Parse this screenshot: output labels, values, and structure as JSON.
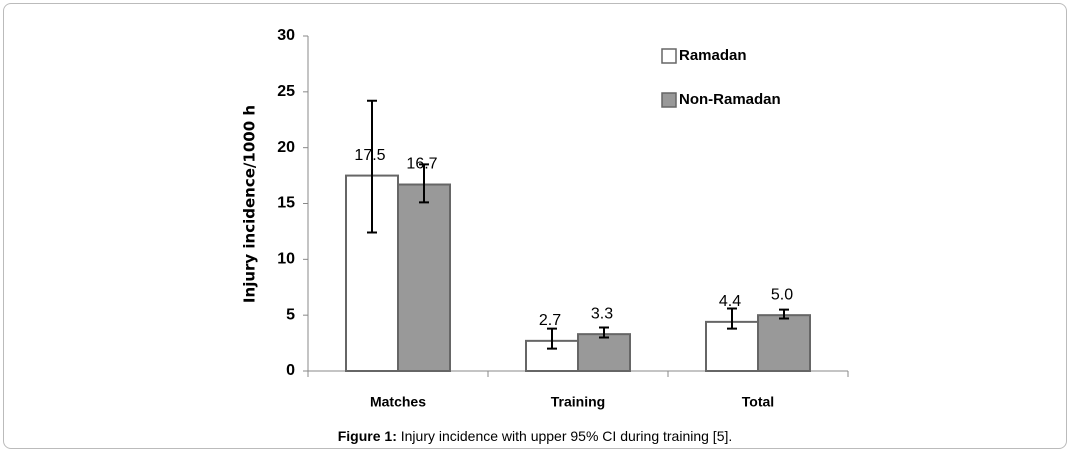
{
  "chart_data": {
    "type": "bar",
    "y_label": "Injury incidence/1000 h",
    "categories": [
      "Matches",
      "Training",
      "Total"
    ],
    "series": [
      {
        "name": "Ramadan",
        "color": "#ffffff",
        "values": [
          17.5,
          2.7,
          4.4
        ],
        "value_labels": [
          "17.5",
          "2.7",
          "4.4"
        ],
        "lower": [
          12.4,
          2.0,
          3.8
        ],
        "upper": [
          24.2,
          3.8,
          5.6
        ]
      },
      {
        "name": "Non-Ramadan",
        "color": "#999999",
        "values": [
          16.7,
          3.3,
          5.0
        ],
        "value_labels": [
          "16.7",
          "3.3",
          "5.0"
        ],
        "lower": [
          15.1,
          3.0,
          4.7
        ],
        "upper": [
          18.5,
          3.9,
          5.5
        ]
      }
    ],
    "ylim": [
      0,
      30
    ],
    "yticks": [
      0,
      5,
      10,
      15,
      20,
      25,
      30
    ],
    "legend": "top-right"
  },
  "figure_label": "Figure 1:",
  "caption": "Injury incidence with upper 95% CI during training [5]."
}
